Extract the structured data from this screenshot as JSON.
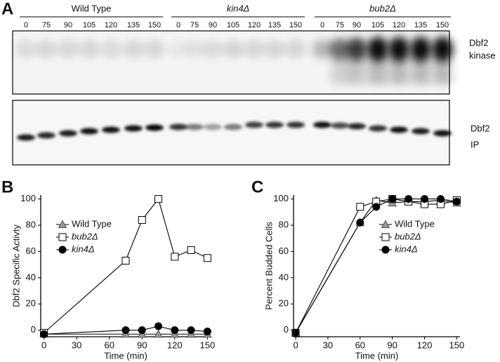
{
  "panel_labels": [
    "A",
    "B",
    "C"
  ],
  "blot": {
    "groups": [
      {
        "name": "Wild Type",
        "lanes": [
          0,
          75,
          90,
          105,
          120,
          135,
          150
        ]
      },
      {
        "name": "kin4Δ",
        "lanes": [
          0,
          75,
          90,
          105,
          120,
          135,
          150
        ]
      },
      {
        "name": "bub2Δ",
        "lanes": [
          0,
          75,
          90,
          105,
          120,
          135,
          150
        ]
      }
    ],
    "kinase_label": [
      "Dbf2",
      "kinase"
    ],
    "ip_label": [
      "Dbf2",
      "IP"
    ]
  },
  "chart_data": [
    {
      "type": "line",
      "x_label": "Time (min)",
      "y_label": "Dbf2 Specific Activty",
      "x": [
        0,
        75,
        90,
        105,
        120,
        135,
        150
      ],
      "xlim": [
        -3,
        153
      ],
      "xticks": [
        0,
        30,
        60,
        90,
        120,
        150
      ],
      "ylim": [
        -5,
        103
      ],
      "yticks": [
        0,
        20,
        40,
        60,
        80,
        100
      ],
      "line_color": "#000000",
      "legend": "center left",
      "series": [
        {
          "name": "Wild Type",
          "marker": "triangle",
          "color": "#999999",
          "values": [
            -3,
            -3,
            -3,
            -3,
            -3,
            -3,
            -3
          ]
        },
        {
          "name": "bub2Δ",
          "marker": "square",
          "color": "#ffffff",
          "values": [
            -2,
            53,
            84,
            100,
            56,
            61,
            55
          ]
        },
        {
          "name": "kin4Δ",
          "marker": "circle",
          "color": "#000000",
          "values": [
            -3,
            0,
            0,
            3,
            0,
            0,
            -1
          ]
        }
      ]
    },
    {
      "type": "line",
      "x_label": "Time (min)",
      "y_label": "Percent Budded Cells",
      "x": [
        0,
        60,
        75,
        90,
        105,
        120,
        135,
        150
      ],
      "xlim": [
        -2,
        153
      ],
      "xticks": [
        0,
        30,
        60,
        90,
        120,
        150
      ],
      "ylim": [
        -5,
        103
      ],
      "yticks": [
        0,
        20,
        40,
        60,
        80,
        100
      ],
      "line_color": "#000000",
      "legend": "center right",
      "series": [
        {
          "name": "Wild Type",
          "marker": "triangle",
          "color": "#999999",
          "values": [
            -2,
            82,
            99,
            97,
            98,
            98,
            99,
            97
          ]
        },
        {
          "name": "bub2Δ",
          "marker": "square",
          "color": "#ffffff",
          "values": [
            -2,
            94,
            98,
            100,
            98,
            96,
            96,
            99
          ]
        },
        {
          "name": "kin4Δ",
          "marker": "circle",
          "color": "#000000",
          "values": [
            -2,
            82,
            94,
            100,
            100,
            100,
            100,
            98
          ]
        }
      ]
    }
  ]
}
